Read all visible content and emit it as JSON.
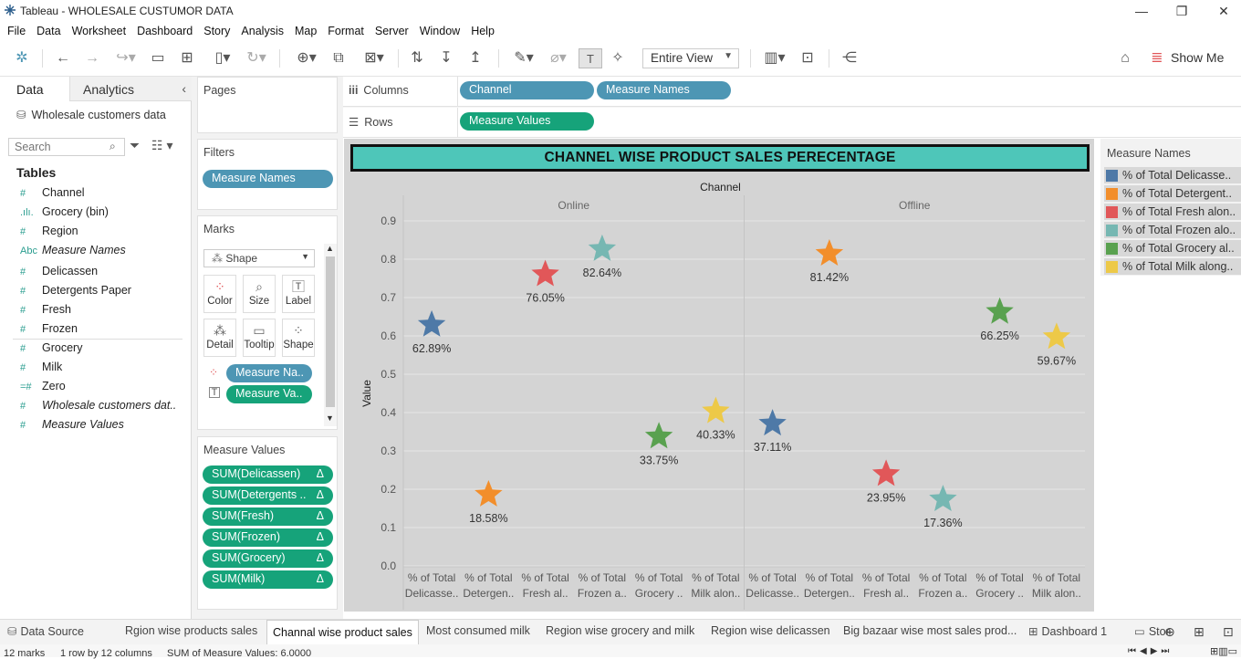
{
  "window": {
    "title": "Tableau - WHOLESALE CUSTUMOR DATA"
  },
  "menu": [
    "File",
    "Data",
    "Worksheet",
    "Dashboard",
    "Story",
    "Analysis",
    "Map",
    "Format",
    "Server",
    "Window",
    "Help"
  ],
  "toolbar": {
    "view_select": "Entire View",
    "show_me": "Show Me"
  },
  "left_pane": {
    "tab_data": "Data",
    "tab_analytics": "Analytics",
    "datasource": "Wholesale customers data",
    "search_placeholder": "Search",
    "tables_label": "Tables",
    "dimensions": [
      {
        "icon": "#",
        "label": "Channel",
        "italic": false
      },
      {
        "icon": ".ılı.",
        "label": "Grocery (bin)",
        "italic": false
      },
      {
        "icon": "#",
        "label": "Region",
        "italic": false
      },
      {
        "icon": "Abc",
        "label": "Measure Names",
        "italic": true
      }
    ],
    "measures": [
      {
        "icon": "#",
        "label": "Delicassen",
        "italic": false
      },
      {
        "icon": "#",
        "label": "Detergents Paper",
        "italic": false
      },
      {
        "icon": "#",
        "label": "Fresh",
        "italic": false
      },
      {
        "icon": "#",
        "label": "Frozen",
        "italic": false
      },
      {
        "icon": "#",
        "label": "Grocery",
        "italic": false
      },
      {
        "icon": "#",
        "label": "Milk",
        "italic": false
      },
      {
        "icon": "=#",
        "label": "Zero",
        "italic": false
      },
      {
        "icon": "#",
        "label": "Wholesale customers dat..",
        "italic": true
      },
      {
        "icon": "#",
        "label": "Measure Values",
        "italic": true
      }
    ]
  },
  "cards": {
    "pages_title": "Pages",
    "filters_title": "Filters",
    "filter_pill": "Measure Names",
    "marks_title": "Marks",
    "mark_type": "Shape",
    "mark_buttons": [
      "Color",
      "Size",
      "Label",
      "Detail",
      "Tooltip",
      "Shape"
    ],
    "marks_pills": [
      "Measure Na..",
      "Measure Va.."
    ],
    "measure_values_title": "Measure Values",
    "measure_values": [
      "SUM(Delicassen)",
      "SUM(Detergents ..",
      "SUM(Fresh)",
      "SUM(Frozen)",
      "SUM(Grocery)",
      "SUM(Milk)"
    ],
    "delta_symbol": "Δ"
  },
  "shelves": {
    "columns_label": "Columns",
    "rows_label": "Rows",
    "columns_pills": [
      "Channel",
      "Measure Names"
    ],
    "rows_pills": [
      "Measure Values"
    ]
  },
  "legend": {
    "title": "Measure Names",
    "items": [
      {
        "label": "% of Total Delicasse..",
        "color": "#4e79a7"
      },
      {
        "label": "% of Total Detergent..",
        "color": "#f28e2b"
      },
      {
        "label": "% of Total Fresh alon..",
        "color": "#e15759"
      },
      {
        "label": "% of Total Frozen alo..",
        "color": "#76b7b2"
      },
      {
        "label": "% of Total Grocery al..",
        "color": "#59a14f"
      },
      {
        "label": "% of Total Milk along..",
        "color": "#edc948"
      }
    ]
  },
  "chart_data": {
    "type": "scatter",
    "mark": "star",
    "title": "CHANNEL WISE PRODUCT SALES PERECENTAGE",
    "column_header": "Channel",
    "ylabel": "Value",
    "ylim": [
      0,
      0.9
    ],
    "yticks": [
      "0.0",
      "0.1",
      "0.2",
      "0.3",
      "0.4",
      "0.5",
      "0.6",
      "0.7",
      "0.8",
      "0.9"
    ],
    "panes": [
      "Online",
      "Offline"
    ],
    "categories": [
      "% of Total Delicasse..",
      "% of Total Detergen..",
      "% of Total Fresh al..",
      "% of Total Frozen a..",
      "% of Total Grocery ..",
      "% of Total Milk alon.."
    ],
    "series": [
      {
        "pane": "Online",
        "values": [
          0.6289,
          0.1858,
          0.7605,
          0.8264,
          0.3375,
          0.4033
        ],
        "labels": [
          "62.89%",
          "18.58%",
          "76.05%",
          "82.64%",
          "33.75%",
          "40.33%"
        ]
      },
      {
        "pane": "Offline",
        "values": [
          0.3711,
          0.8142,
          0.2395,
          0.1736,
          0.6625,
          0.5967
        ],
        "labels": [
          "37.11%",
          "81.42%",
          "23.95%",
          "17.36%",
          "66.25%",
          "59.67%"
        ]
      }
    ],
    "colors": [
      "#4e79a7",
      "#f28e2b",
      "#e15759",
      "#76b7b2",
      "#59a14f",
      "#edc948"
    ]
  },
  "sheet_tabs": {
    "data_source": "Data Source",
    "tabs": [
      "Rgion wise products sales",
      "Channal wise product sales",
      "Most consumed milk",
      "Region wise grocery and milk",
      "Region wise delicassen",
      "Big bazaar wise most sales prod...",
      "Dashboard 1",
      "Stor"
    ],
    "active_index": 1
  },
  "status": {
    "marks": "12 marks",
    "rows_cols": "1 row by 12 columns",
    "sum": "SUM of Measure Values: 6.0000"
  }
}
